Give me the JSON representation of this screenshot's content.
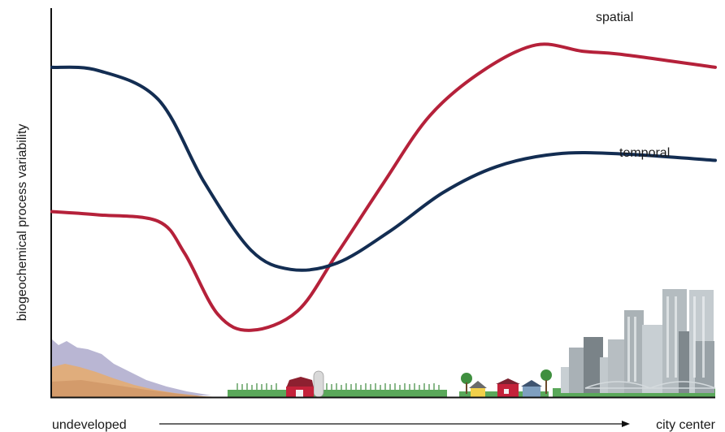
{
  "chart_data": {
    "type": "line",
    "title": "",
    "ylabel": "biogeochemical process variability",
    "xlabel_left": "undeveloped",
    "xlabel_right": "city center",
    "x_range": [
      0,
      1
    ],
    "ylim": [
      0,
      1
    ],
    "grid": false,
    "legend": "none",
    "series": [
      {
        "name": "spatial",
        "color": "#b5213a",
        "points": [
          [
            0.0,
            0.53
          ],
          [
            0.07,
            0.52
          ],
          [
            0.16,
            0.5
          ],
          [
            0.2,
            0.4
          ],
          [
            0.25,
            0.21
          ],
          [
            0.3,
            0.16
          ],
          [
            0.37,
            0.22
          ],
          [
            0.43,
            0.4
          ],
          [
            0.5,
            0.62
          ],
          [
            0.57,
            0.83
          ],
          [
            0.65,
            0.97
          ],
          [
            0.73,
            1.05
          ],
          [
            0.8,
            1.03
          ],
          [
            0.86,
            1.02
          ],
          [
            1.0,
            0.98
          ]
        ]
      },
      {
        "name": "temporal",
        "color": "#132d52",
        "points": [
          [
            0.0,
            0.98
          ],
          [
            0.07,
            0.97
          ],
          [
            0.16,
            0.88
          ],
          [
            0.23,
            0.62
          ],
          [
            0.3,
            0.41
          ],
          [
            0.36,
            0.35
          ],
          [
            0.43,
            0.37
          ],
          [
            0.51,
            0.47
          ],
          [
            0.59,
            0.59
          ],
          [
            0.67,
            0.67
          ],
          [
            0.76,
            0.71
          ],
          [
            0.86,
            0.71
          ],
          [
            1.0,
            0.69
          ]
        ]
      }
    ]
  },
  "colors": {
    "axis": "#111111",
    "spatial": "#b5213a",
    "temporal": "#132d52",
    "mountain_far": "#b9b6d3",
    "mountain_near": "#e0ad7c",
    "grass": "#4a9a4a",
    "barn": "#c4223a",
    "buildings": "#9aa3a8"
  },
  "icons": [
    "mountains-illustration",
    "farm-illustration",
    "suburb-houses-illustration",
    "city-skyline-illustration",
    "bridge-illustration"
  ]
}
